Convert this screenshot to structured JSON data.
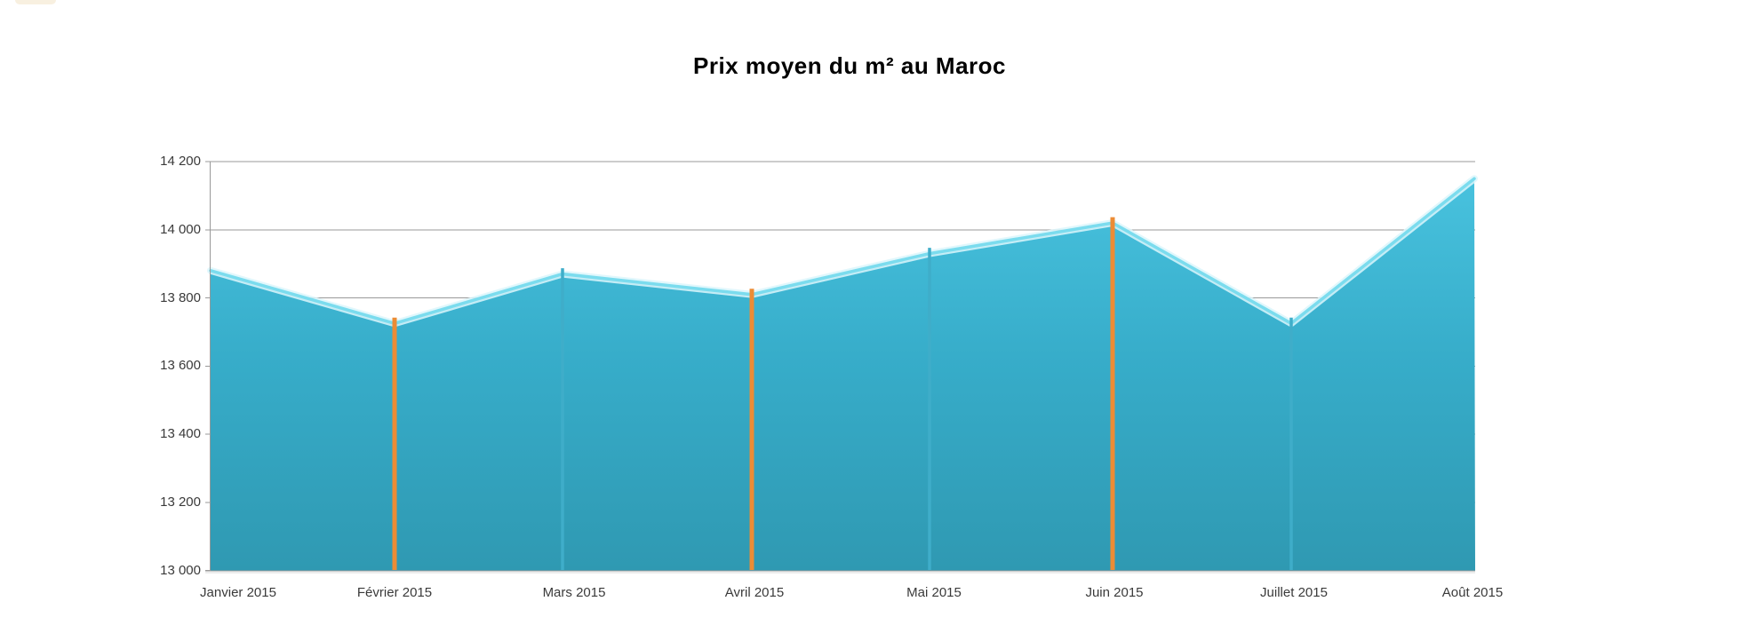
{
  "chart_data": {
    "type": "area",
    "title": "Prix moyen du m² au Maroc",
    "x": [
      "Janvier 2015",
      "Février 2015",
      "Mars 2015",
      "Avril 2015",
      "Mai 2015",
      "Juin 2015",
      "Juillet 2015",
      "Août 2015"
    ],
    "values": [
      13880,
      13725,
      13870,
      13810,
      13930,
      14020,
      13725,
      14150
    ],
    "ylim": [
      13000,
      14200
    ],
    "ytick_step": 200,
    "ytick_labels": [
      "14 200",
      "14 000",
      "13 800",
      "13 600",
      "13 400",
      "13 200",
      "13 000"
    ],
    "xlabel": "",
    "ylabel": "",
    "grid": "horizontal",
    "legend": "none",
    "drop_lines": {
      "orange": [
        "Février 2015",
        "Avril 2015",
        "Juin 2015"
      ],
      "teal": [
        "Mars 2015",
        "Mai 2015",
        "Juillet 2015"
      ]
    },
    "colors": {
      "area_top": "#48c2de",
      "area_mid": "#37adca",
      "area_bottom": "#2f99b2",
      "edge_highlight": "#7bdcee",
      "edge_glow": "#dcf6fb",
      "orange_line": "#ec8c35",
      "teal_line": "#3fadc9",
      "gridline": "#999999",
      "axis": "#999999",
      "axis_shadow": "#d9d9d9",
      "label_text": "#3a3a3a",
      "title_text": "#000000"
    }
  }
}
